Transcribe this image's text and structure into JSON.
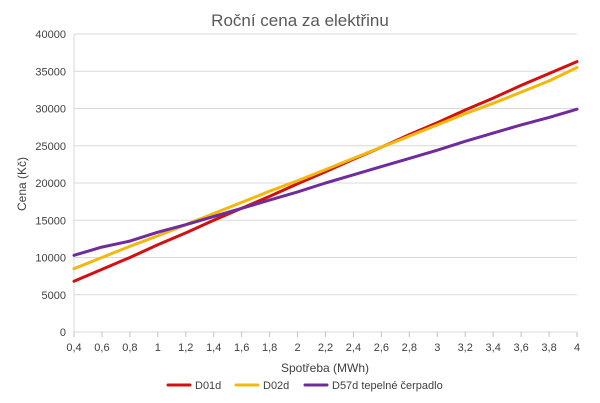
{
  "chart_data": {
    "type": "line",
    "title": "Roční cena za elektřinu",
    "xlabel": "Spotřeba (MWh)",
    "ylabel": "Cena (Kč)",
    "xlim": [
      0.4,
      4
    ],
    "ylim": [
      0,
      40000
    ],
    "x_ticks": [
      "0,4",
      "0,6",
      "0,8",
      "1",
      "1,2",
      "1,4",
      "1,6",
      "1,8",
      "2",
      "2,2",
      "2,4",
      "2,6",
      "2,8",
      "3",
      "3,2",
      "3,4",
      "3,6",
      "3,8",
      "4"
    ],
    "y_ticks": [
      "0",
      "5000",
      "10000",
      "15000",
      "20000",
      "25000",
      "30000",
      "35000",
      "40000"
    ],
    "grid": "horizontal",
    "legend_position": "bottom",
    "x": [
      0.4,
      0.6,
      0.8,
      1.0,
      1.2,
      1.4,
      1.6,
      1.8,
      2.0,
      2.2,
      2.4,
      2.6,
      2.8,
      3.0,
      3.2,
      3.4,
      3.6,
      3.8,
      4.0
    ],
    "series": [
      {
        "name": "D01d",
        "color": "#d40f0f",
        "values": [
          6800,
          8400,
          10000,
          11700,
          13300,
          15000,
          16600,
          18200,
          19900,
          21500,
          23200,
          24800,
          26500,
          28100,
          29800,
          31400,
          33100,
          34700,
          36300
        ]
      },
      {
        "name": "D02d",
        "color": "#f2b80c",
        "values": [
          8500,
          10000,
          11500,
          12900,
          14400,
          15900,
          17400,
          18900,
          20300,
          21800,
          23300,
          24800,
          26300,
          27800,
          29300,
          30700,
          32200,
          33700,
          35500
        ]
      },
      {
        "name": "D57d tepelné čerpadlo",
        "color": "#6f2c9c",
        "values": [
          10300,
          11400,
          12200,
          13400,
          14400,
          15500,
          16600,
          17700,
          18800,
          20000,
          21100,
          22200,
          23300,
          24400,
          25600,
          26700,
          27800,
          28800,
          29900
        ]
      }
    ]
  }
}
